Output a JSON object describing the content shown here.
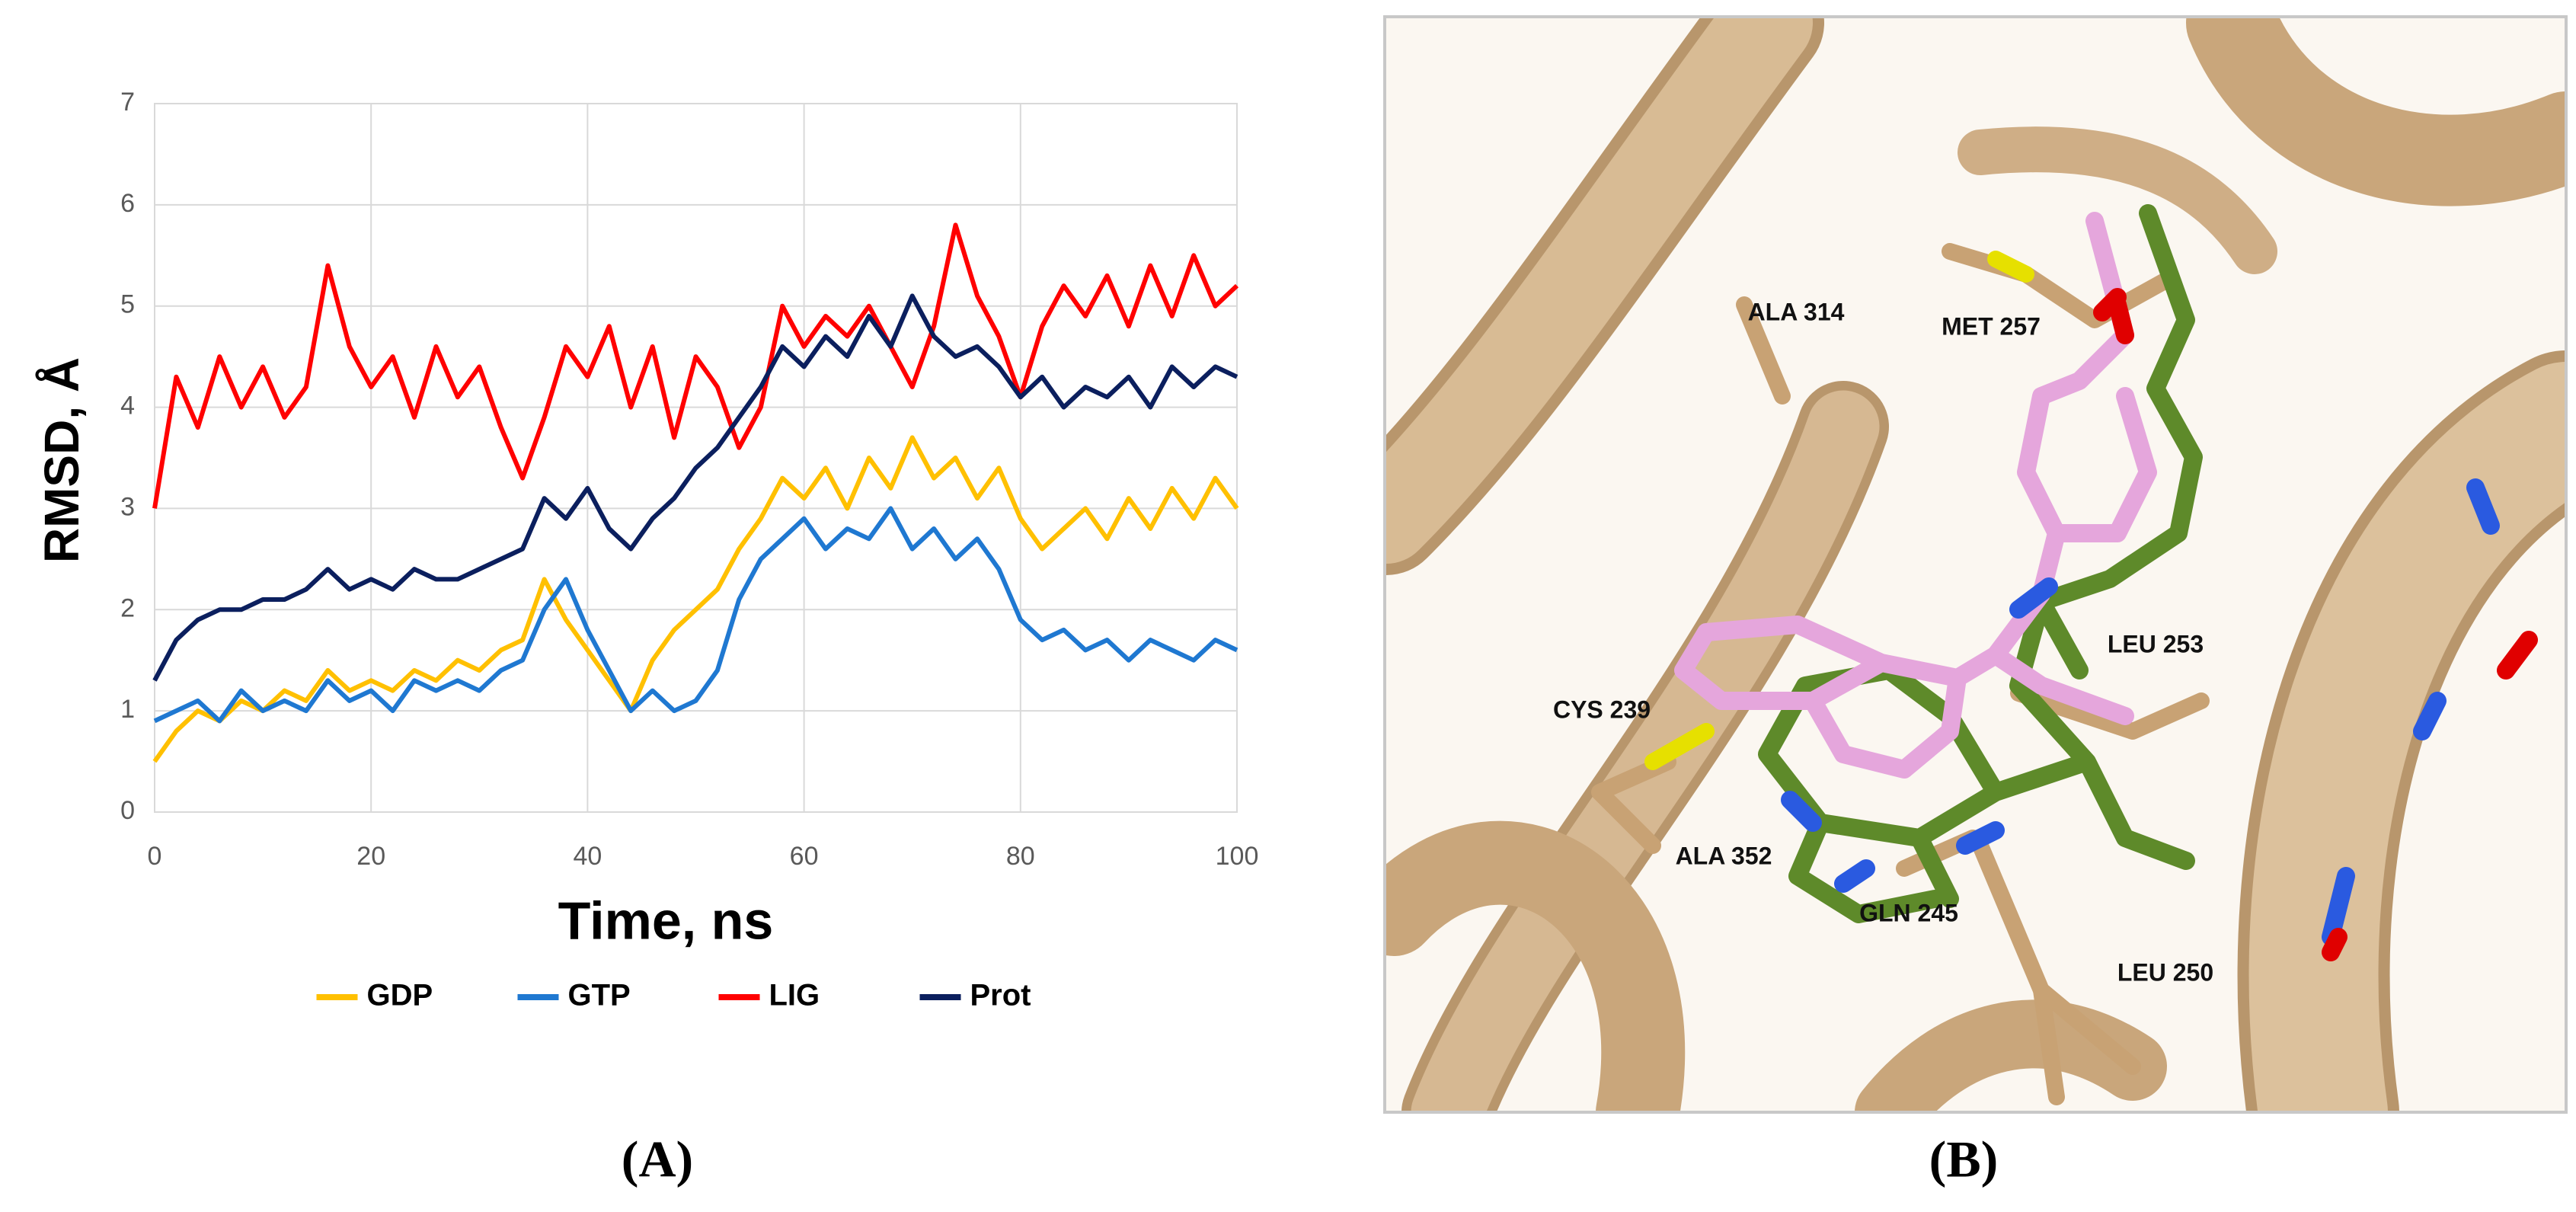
{
  "chart_data": {
    "type": "line",
    "y_label": "RMSD, Å",
    "x_label": "Time, ns",
    "x": [
      0,
      2,
      4,
      6,
      8,
      10,
      12,
      14,
      16,
      18,
      20,
      22,
      24,
      26,
      28,
      30,
      32,
      34,
      36,
      38,
      40,
      42,
      44,
      46,
      48,
      50,
      52,
      54,
      56,
      58,
      60,
      62,
      64,
      66,
      68,
      70,
      72,
      74,
      76,
      78,
      80,
      82,
      84,
      86,
      88,
      90,
      92,
      94,
      96,
      98,
      100
    ],
    "series": [
      {
        "name": "GDP",
        "color": "#ffc000",
        "values": [
          0.5,
          0.8,
          1.0,
          0.9,
          1.1,
          1.0,
          1.2,
          1.1,
          1.4,
          1.2,
          1.3,
          1.2,
          1.4,
          1.3,
          1.5,
          1.4,
          1.6,
          1.7,
          2.3,
          1.9,
          1.6,
          1.3,
          1.0,
          1.5,
          1.8,
          2.0,
          2.2,
          2.6,
          2.9,
          3.3,
          3.1,
          3.4,
          3.0,
          3.5,
          3.2,
          3.7,
          3.3,
          3.5,
          3.1,
          3.4,
          2.9,
          2.6,
          2.8,
          3.0,
          2.7,
          3.1,
          2.8,
          3.2,
          2.9,
          3.3,
          3.0
        ]
      },
      {
        "name": "GTP",
        "color": "#1f78d1",
        "values": [
          0.9,
          1.0,
          1.1,
          0.9,
          1.2,
          1.0,
          1.1,
          1.0,
          1.3,
          1.1,
          1.2,
          1.0,
          1.3,
          1.2,
          1.3,
          1.2,
          1.4,
          1.5,
          2.0,
          2.3,
          1.8,
          1.4,
          1.0,
          1.2,
          1.0,
          1.1,
          1.4,
          2.1,
          2.5,
          2.7,
          2.9,
          2.6,
          2.8,
          2.7,
          3.0,
          2.6,
          2.8,
          2.5,
          2.7,
          2.4,
          1.9,
          1.7,
          1.8,
          1.6,
          1.7,
          1.5,
          1.7,
          1.6,
          1.5,
          1.7,
          1.6
        ]
      },
      {
        "name": "LIG",
        "color": "#ff0000",
        "values": [
          3.0,
          4.3,
          3.8,
          4.5,
          4.0,
          4.4,
          3.9,
          4.2,
          5.4,
          4.6,
          4.2,
          4.5,
          3.9,
          4.6,
          4.1,
          4.4,
          3.8,
          3.3,
          3.9,
          4.6,
          4.3,
          4.8,
          4.0,
          4.6,
          3.7,
          4.5,
          4.2,
          3.6,
          4.0,
          5.0,
          4.6,
          4.9,
          4.7,
          5.0,
          4.6,
          4.2,
          4.8,
          5.8,
          5.1,
          4.7,
          4.1,
          4.8,
          5.2,
          4.9,
          5.3,
          4.8,
          5.4,
          4.9,
          5.5,
          5.0,
          5.2
        ]
      },
      {
        "name": "Prot",
        "color": "#0b1f5e",
        "values": [
          1.3,
          1.7,
          1.9,
          2.0,
          2.0,
          2.1,
          2.1,
          2.2,
          2.4,
          2.2,
          2.3,
          2.2,
          2.4,
          2.3,
          2.3,
          2.4,
          2.5,
          2.6,
          3.1,
          2.9,
          3.2,
          2.8,
          2.6,
          2.9,
          3.1,
          3.4,
          3.6,
          3.9,
          4.2,
          4.6,
          4.4,
          4.7,
          4.5,
          4.9,
          4.6,
          5.1,
          4.7,
          4.5,
          4.6,
          4.4,
          4.1,
          4.3,
          4.0,
          4.2,
          4.1,
          4.3,
          4.0,
          4.4,
          4.2,
          4.4,
          4.3
        ]
      }
    ],
    "xlim": [
      0,
      100
    ],
    "xticks": [
      0,
      20,
      40,
      60,
      80,
      100
    ],
    "ylim": [
      0,
      7
    ],
    "yticks": [
      0,
      1,
      2,
      3,
      4,
      5,
      6,
      7
    ],
    "grid": true,
    "legend": "bottom"
  },
  "panel_labels": [
    "(A)",
    "(B)"
  ],
  "structure_labels": [
    "ALA 314",
    "MET 257",
    "LEU 253",
    "CYS 239",
    "ALA 352",
    "GLN 245",
    "LEU 250"
  ]
}
